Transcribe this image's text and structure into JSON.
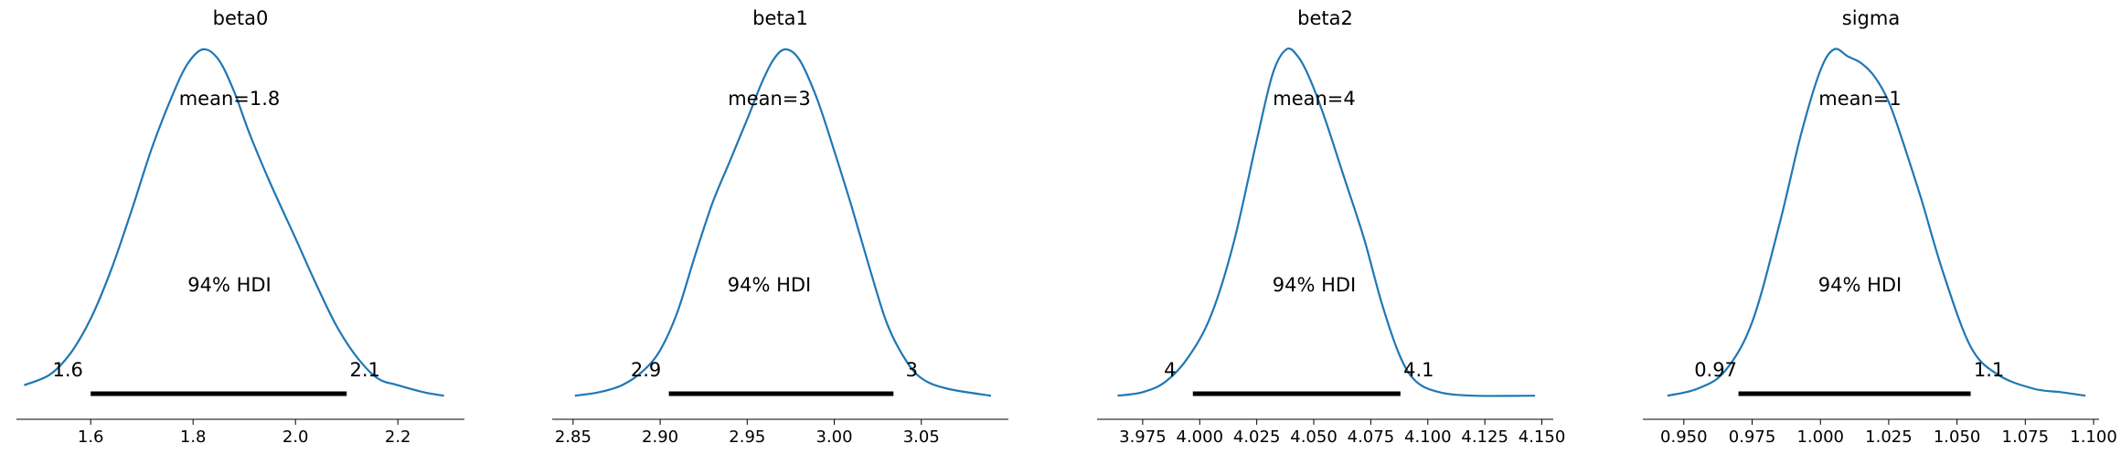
{
  "chart_data": [
    {
      "type": "line",
      "title": "beta0",
      "mean_label": "mean=1.8",
      "hdi_label": "94% HDI",
      "hdi": [
        1.6,
        2.1
      ],
      "hdi_low_label": "1.6",
      "hdi_high_label": "2.1",
      "xlim": [
        1.455,
        2.33
      ],
      "ticks": [
        1.6,
        1.8,
        2.0,
        2.2
      ],
      "tick_labels": [
        "1.6",
        "1.8",
        "2.0",
        "2.2"
      ],
      "density": {
        "x": [
          1.47,
          1.52,
          1.56,
          1.6,
          1.64,
          1.68,
          1.72,
          1.76,
          1.79,
          1.82,
          1.85,
          1.88,
          1.91,
          1.95,
          2.0,
          2.04,
          2.08,
          2.12,
          2.16,
          2.2,
          2.25,
          2.29
        ],
        "y": [
          0.04,
          0.07,
          0.13,
          0.23,
          0.37,
          0.54,
          0.72,
          0.87,
          0.96,
          1.0,
          0.97,
          0.88,
          0.76,
          0.62,
          0.46,
          0.33,
          0.21,
          0.12,
          0.06,
          0.04,
          0.02,
          0.01
        ]
      }
    },
    {
      "type": "line",
      "title": "beta1",
      "mean_label": "mean=3",
      "hdi_label": "94% HDI",
      "hdi": [
        2.905,
        3.034
      ],
      "hdi_low_label": "2.9",
      "hdi_high_label": "3",
      "xlim": [
        2.838,
        3.1
      ],
      "ticks": [
        2.85,
        2.9,
        2.95,
        3.0,
        3.05
      ],
      "tick_labels": [
        "2.85",
        "2.90",
        "2.95",
        "3.00",
        "3.05"
      ],
      "density": {
        "x": [
          2.851,
          2.865,
          2.878,
          2.89,
          2.9,
          2.91,
          2.92,
          2.93,
          2.94,
          2.95,
          2.958,
          2.965,
          2.972,
          2.98,
          2.99,
          3.0,
          3.01,
          3.02,
          3.03,
          3.04,
          3.05,
          3.065,
          3.09
        ],
        "y": [
          0.01,
          0.02,
          0.04,
          0.08,
          0.14,
          0.25,
          0.41,
          0.56,
          0.68,
          0.8,
          0.9,
          0.97,
          1.0,
          0.97,
          0.86,
          0.71,
          0.55,
          0.38,
          0.22,
          0.12,
          0.06,
          0.03,
          0.01
        ]
      }
    },
    {
      "type": "line",
      "title": "beta2",
      "mean_label": "mean=4",
      "hdi_label": "94% HDI",
      "hdi": [
        3.997,
        4.088
      ],
      "hdi_low_label": "4",
      "hdi_high_label": "4.1",
      "xlim": [
        3.955,
        4.155
      ],
      "ticks": [
        3.975,
        4.0,
        4.025,
        4.05,
        4.075,
        4.1,
        4.125,
        4.15
      ],
      "tick_labels": [
        "3.975",
        "4.000",
        "4.025",
        "4.050",
        "4.075",
        "4.100",
        "4.125",
        "4.150"
      ],
      "density": {
        "x": [
          3.964,
          3.975,
          3.985,
          3.995,
          4.005,
          4.015,
          4.025,
          4.032,
          4.038,
          4.043,
          4.048,
          4.055,
          4.063,
          4.072,
          4.08,
          4.088,
          4.095,
          4.105,
          4.12,
          4.147
        ],
        "y": [
          0.01,
          0.02,
          0.05,
          0.12,
          0.24,
          0.45,
          0.74,
          0.93,
          1.0,
          0.98,
          0.92,
          0.8,
          0.64,
          0.46,
          0.27,
          0.12,
          0.05,
          0.02,
          0.01,
          0.01
        ]
      }
    },
    {
      "type": "line",
      "title": "sigma",
      "mean_label": "mean=1",
      "hdi_label": "94% HDI",
      "hdi": [
        0.97,
        1.055
      ],
      "hdi_low_label": "0.97",
      "hdi_high_label": "1.1",
      "xlim": [
        0.935,
        1.102
      ],
      "ticks": [
        0.95,
        0.975,
        1.0,
        1.025,
        1.05,
        1.075,
        1.1
      ],
      "tick_labels": [
        "0.950",
        "0.975",
        "1.000",
        "1.025",
        "1.050",
        "1.075",
        "1.100"
      ],
      "density": {
        "x": [
          0.944,
          0.955,
          0.965,
          0.975,
          0.985,
          0.993,
          1.0,
          1.005,
          1.01,
          1.015,
          1.02,
          1.025,
          1.03,
          1.037,
          1.045,
          1.055,
          1.065,
          1.078,
          1.088,
          1.097
        ],
        "y": [
          0.01,
          0.03,
          0.08,
          0.22,
          0.5,
          0.76,
          0.94,
          1.0,
          0.98,
          0.96,
          0.92,
          0.85,
          0.74,
          0.57,
          0.36,
          0.15,
          0.07,
          0.03,
          0.02,
          0.01
        ]
      }
    }
  ]
}
